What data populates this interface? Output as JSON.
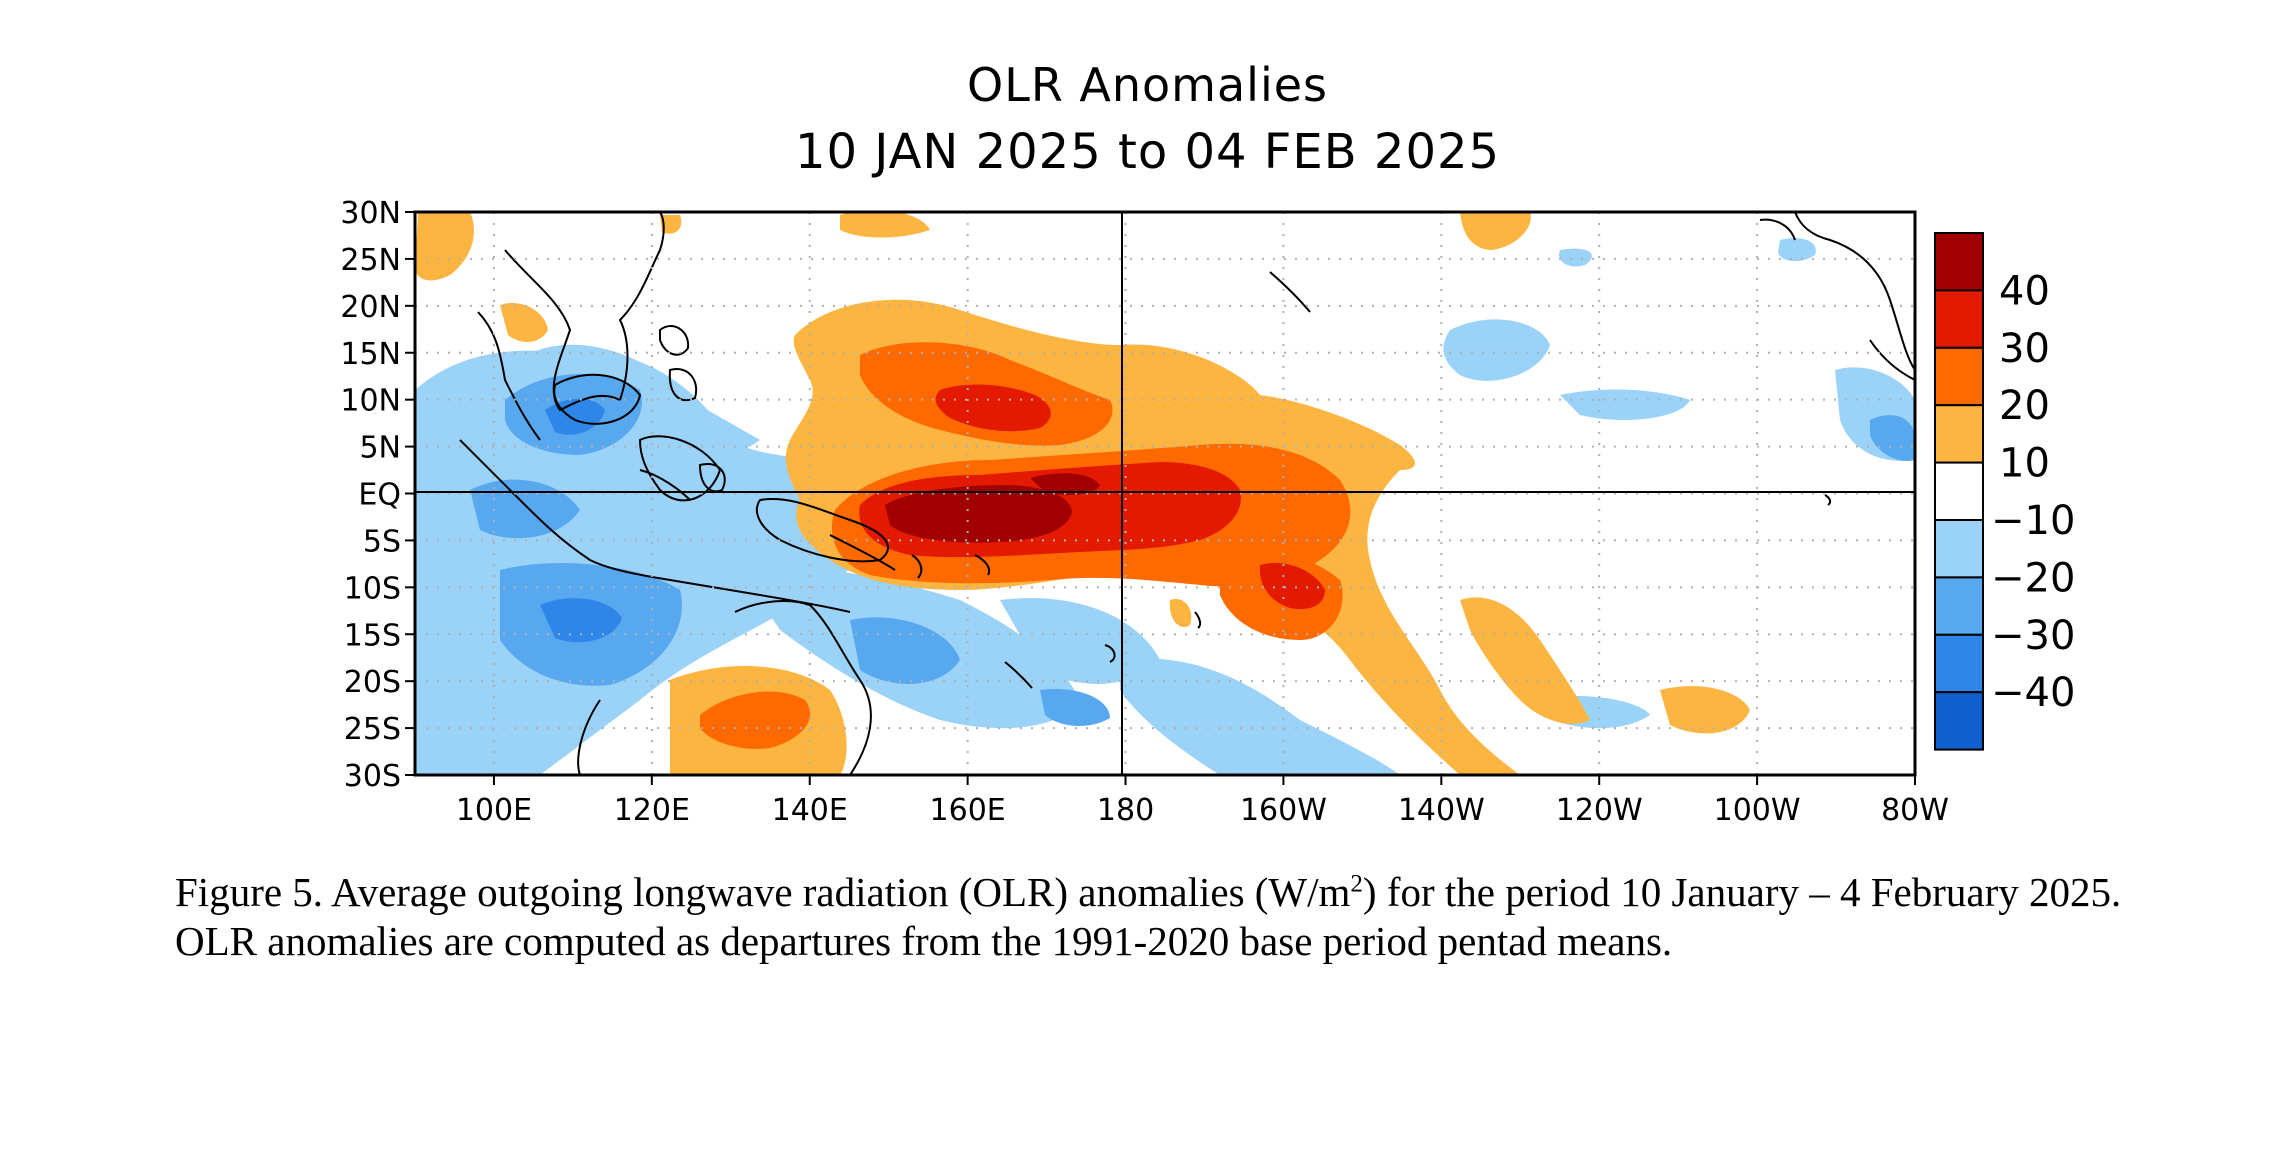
{
  "title": {
    "line1": "OLR Anomalies",
    "line2": "10 JAN 2025 to 04 FEB 2025"
  },
  "axes": {
    "y_ticks": [
      "30N",
      "25N",
      "20N",
      "15N",
      "10N",
      "5N",
      "EQ",
      "5S",
      "10S",
      "15S",
      "20S",
      "25S",
      "30S"
    ],
    "x_ticks": [
      "100E",
      "120E",
      "140E",
      "160E",
      "180",
      "160W",
      "140W",
      "120W",
      "100W",
      "80W"
    ]
  },
  "colorbar": {
    "labels": [
      "40",
      "30",
      "20",
      "10",
      "−10",
      "−20",
      "−30",
      "−40"
    ],
    "colors": [
      "#a00000",
      "#e41a00",
      "#ff6a00",
      "#fbb540",
      "#ffffff",
      "#9ad2f8",
      "#58a8f0",
      "#2e86e8",
      "#1060d0"
    ]
  },
  "palette": {
    "pos10": "#fbb540",
    "pos20": "#ff6a00",
    "pos30": "#e41a00",
    "pos40": "#a00000",
    "neg10": "#9ad2f8",
    "neg20": "#58a8f0",
    "neg30": "#2e86e8"
  },
  "caption": {
    "part1": "Figure 5. Average outgoing longwave radiation (OLR) anomalies (W/m",
    "sup": "2",
    "part2": ") for the period 10 January – 4 February 2025.  OLR anomalies are computed as departures from the 1991-2020 base period pentad means."
  }
}
